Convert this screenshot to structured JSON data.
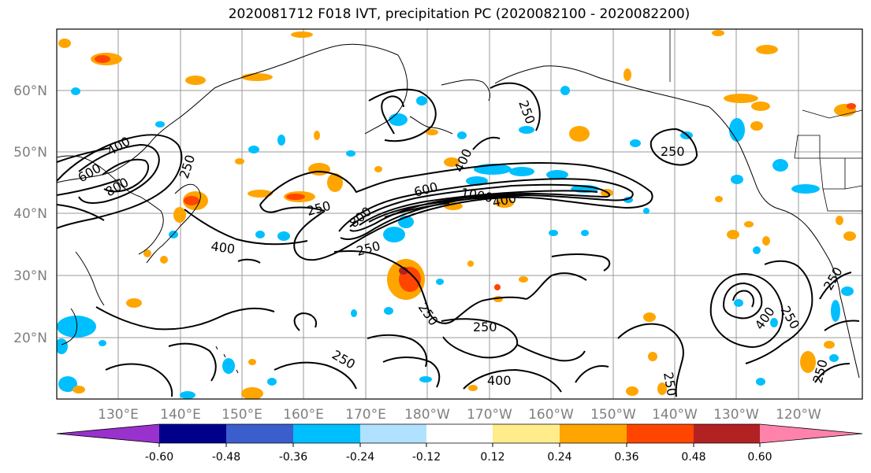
{
  "title": "2020081712 F018 IVT, precipitation PC (2020082100 - 2020082200)",
  "lat_labels": [
    "60°N",
    "50°N",
    "40°N",
    "30°N",
    "20°N"
  ],
  "lon_labels": [
    "130°E",
    "140°E",
    "150°E",
    "160°E",
    "170°E",
    "180°W",
    "170°W",
    "160°W",
    "150°W",
    "140°W",
    "130°W",
    "120°W"
  ],
  "contour_labels": [
    "400",
    "600",
    "800",
    "250",
    "250",
    "400",
    "800",
    "250",
    "600",
    "400",
    "1000",
    "400",
    "250",
    "250",
    "250",
    "250",
    "400",
    "250",
    "400",
    "250",
    "250",
    "250",
    "250"
  ],
  "colorbar": {
    "colors": [
      "#9932cc",
      "#00008b",
      "#3a5fcd",
      "#00bfff",
      "#b0e2ff",
      "#ffffff",
      "#ffec8b",
      "#ffa500",
      "#ff4500",
      "#b22222",
      "#ff82ab"
    ],
    "tick_labels": [
      "-0.60",
      "-0.48",
      "-0.36",
      "-0.24",
      "-0.12",
      "0.12",
      "0.24",
      "0.36",
      "0.48",
      "0.60"
    ]
  }
}
